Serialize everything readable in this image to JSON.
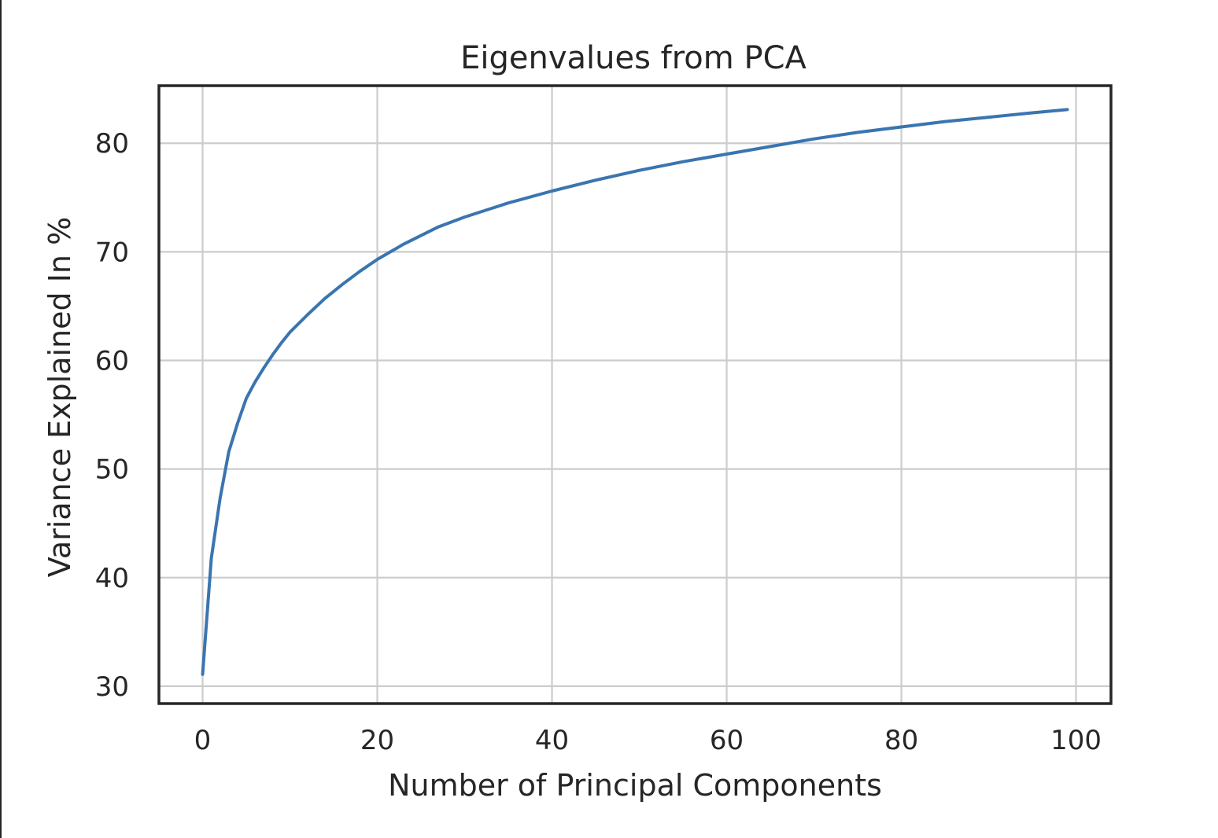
{
  "chart_data": {
    "type": "line",
    "title": "Eigenvalues from PCA",
    "xlabel": "Number of Principal Components",
    "ylabel": "Variance Explained In %",
    "xlim": [
      -5,
      104
    ],
    "ylim": [
      28.4,
      85.3
    ],
    "xticks": [
      0,
      20,
      40,
      60,
      80,
      100
    ],
    "yticks": [
      30,
      40,
      50,
      60,
      70,
      80
    ],
    "grid": true,
    "series": [
      {
        "color": "#3a75b0",
        "x": [
          0,
          1,
          2,
          3,
          4,
          5,
          6,
          7,
          8,
          9,
          10,
          12,
          14,
          16,
          18,
          20,
          23,
          27,
          30,
          35,
          40,
          45,
          50,
          55,
          60,
          65,
          70,
          75,
          80,
          85,
          90,
          95,
          99
        ],
        "y": [
          31.1,
          41.8,
          47.3,
          51.6,
          54.2,
          56.5,
          58.0,
          59.3,
          60.5,
          61.6,
          62.6,
          64.2,
          65.7,
          67.0,
          68.2,
          69.3,
          70.7,
          72.3,
          73.2,
          74.5,
          75.6,
          76.6,
          77.5,
          78.3,
          79.0,
          79.7,
          80.4,
          81.0,
          81.5,
          82.0,
          82.4,
          82.8,
          83.1
        ]
      }
    ]
  },
  "colors": {
    "line": "#3a75b0",
    "grid": "#cccccc",
    "axes": "#262626",
    "text": "#262626"
  }
}
